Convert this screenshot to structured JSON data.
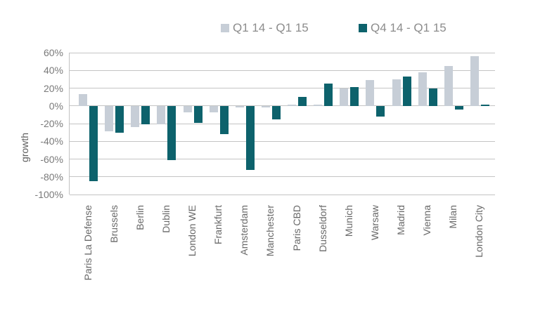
{
  "chart_data": {
    "type": "bar",
    "title": "",
    "ylabel": "growth",
    "xlabel": "",
    "ylim": [
      -100,
      60
    ],
    "grid": true,
    "legend_position": "top",
    "ytick_values": [
      60,
      40,
      20,
      0,
      -20,
      -40,
      -60,
      -80,
      -100
    ],
    "ytick_labels": [
      "60%",
      "40%",
      "20%",
      "0%",
      "-20%",
      "-40%",
      "-60%",
      "-80%",
      "-100%"
    ],
    "categories": [
      "Paris La Defense",
      "Brussels",
      "Berlin",
      "Dublin",
      "London WE",
      "Frankfurt",
      "Amsterdam",
      "Manchester",
      "Paris CBD",
      "Dusseldorf",
      "Munich",
      "Warsaw",
      "Madrid",
      "Vienna",
      "Milan",
      "London City"
    ],
    "series": [
      {
        "name": "Q1 14 - Q1 15",
        "color": "#c7ced7",
        "values": [
          13,
          -29,
          -24,
          -21,
          -7,
          -7,
          -2,
          -2,
          1,
          1,
          20,
          29,
          30,
          38,
          45,
          56
        ]
      },
      {
        "name": "Q4 14 - Q1 15",
        "color": "#0d626c",
        "values": [
          -85,
          -30,
          -21,
          -61,
          -19,
          -32,
          -72,
          -15,
          10,
          25,
          21,
          -12,
          33,
          20,
          -4,
          1
        ]
      }
    ]
  }
}
